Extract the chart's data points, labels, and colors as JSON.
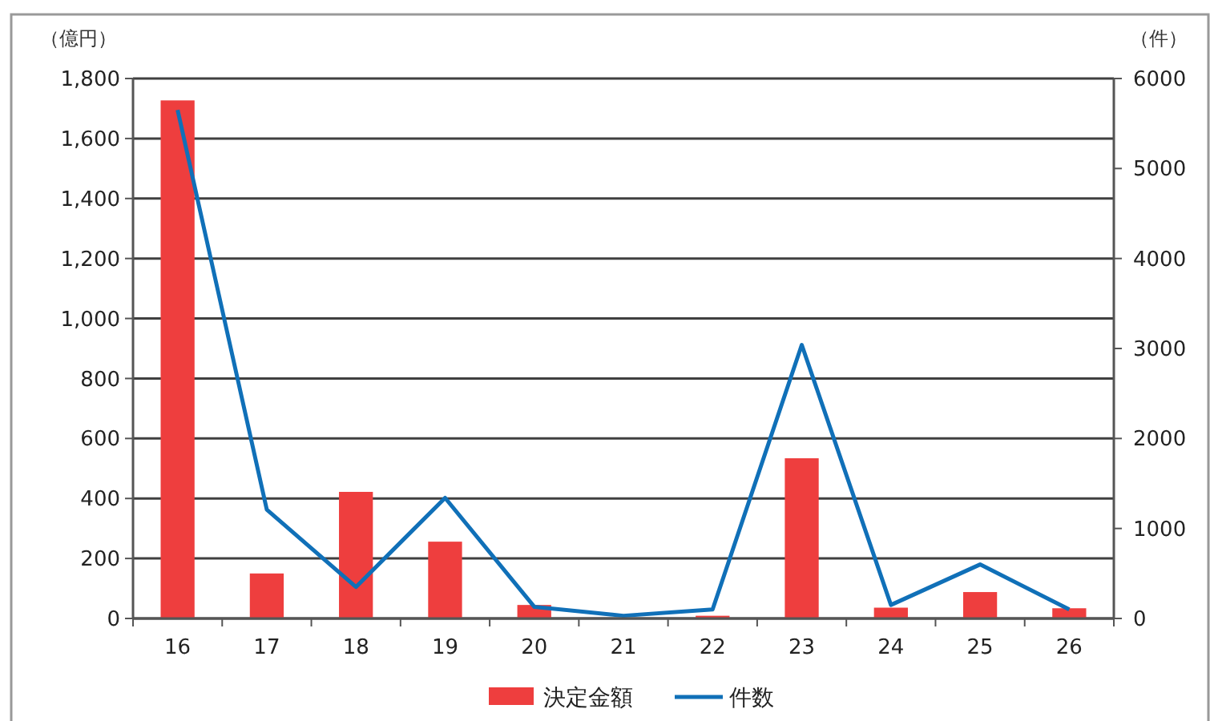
{
  "chart_data": {
    "type": "bar",
    "ylabel": "（億円）",
    "y2label": "（件）",
    "categories": [
      "16",
      "17",
      "18",
      "19",
      "20",
      "21",
      "22",
      "23",
      "24",
      "25",
      "26"
    ],
    "series": [
      {
        "name": "決定金額",
        "color": "#ee3e3e",
        "values": [
          1727,
          150,
          422,
          256,
          45,
          0,
          9,
          534,
          36,
          88,
          34
        ]
      },
      {
        "name": "件数",
        "type": "line",
        "axis": "y2",
        "color": "#1070b8",
        "values": [
          5650,
          1210,
          350,
          1340,
          130,
          30,
          100,
          3040,
          150,
          600,
          100
        ]
      }
    ],
    "ylim": [
      0,
      1800
    ],
    "yticks": [
      0,
      {
        "value": 200,
        "label": "200"
      },
      {
        "value": 400,
        "label": "400"
      },
      {
        "value": 600,
        "label": "600"
      },
      {
        "value": 800,
        "label": "800"
      },
      {
        "value": 1000,
        "label": "1,000"
      },
      {
        "value": 1200,
        "label": "1,200"
      },
      {
        "value": 1400,
        "label": "1,400"
      },
      {
        "value": 1600,
        "label": "1,600"
      },
      {
        "value": 1800,
        "label": "1,800"
      }
    ],
    "y2lim": [
      0,
      6000
    ],
    "y2ticks": [
      0,
      1000,
      2000,
      3000,
      4000,
      5000,
      6000
    ],
    "grid": "y",
    "legend": "bottom",
    "marker": "none",
    "line_style": "solid"
  }
}
